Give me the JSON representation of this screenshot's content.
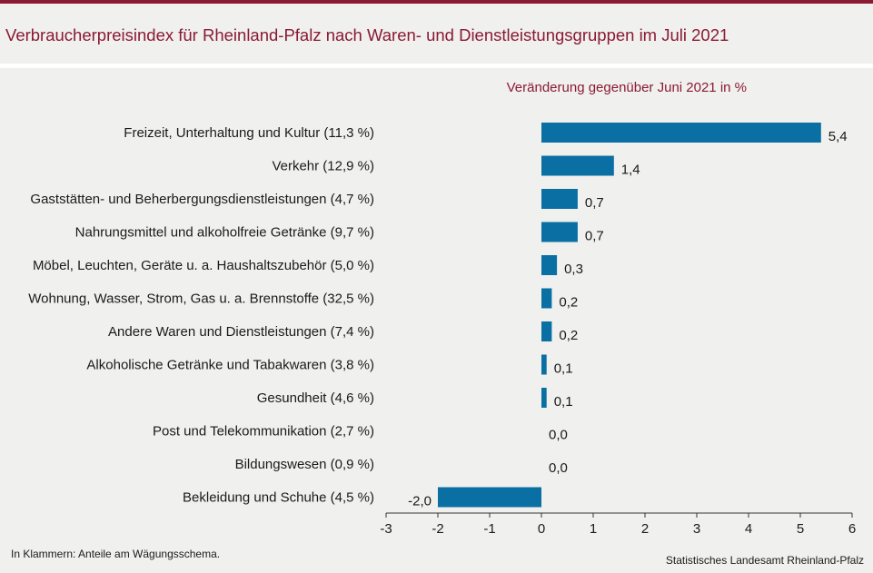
{
  "page": {
    "title": "Verbraucherpreisindex für Rheinland-Pfalz nach Waren- und Dienstleistungsgruppen im Juli 2021",
    "footnote": "In Klammern: Anteile am Wägungsschema.",
    "source": "Statistisches Landesamt Rheinland-Pfalz"
  },
  "chart_data": {
    "type": "bar",
    "orientation": "horizontal",
    "title": "Verbraucherpreisindex für Rheinland-Pfalz nach Waren- und Dienstleistungsgruppen im Juli 2021",
    "subtitle": "Veränderung gegenüber Juni 2021 in %",
    "categories": [
      "Freizeit, Unterhaltung und Kultur (11,3 %)",
      "Verkehr (12,9 %)",
      "Gaststätten- und Beherbergungsdienstleistungen (4,7 %)",
      "Nahrungsmittel und alkoholfreie Getränke (9,7 %)",
      "Möbel, Leuchten, Geräte u. a. Haushaltszubehör (5,0 %)",
      "Wohnung, Wasser, Strom, Gas u. a. Brennstoffe (32,5 %)",
      "Andere Waren und Dienstleistungen (7,4 %)",
      "Alkoholische Getränke und Tabakwaren (3,8 %)",
      "Gesundheit (4,6 %)",
      "Post und Telekommunikation (2,7 %)",
      "Bildungswesen (0,9 %)",
      "Bekleidung und Schuhe (4,5 %)"
    ],
    "values": [
      5.4,
      1.4,
      0.7,
      0.7,
      0.3,
      0.2,
      0.2,
      0.1,
      0.1,
      0.0,
      0.0,
      -2.0
    ],
    "value_labels": [
      "5,4",
      "1,4",
      "0,7",
      "0,7",
      "0,3",
      "0,2",
      "0,2",
      "0,1",
      "0,1",
      "0,0",
      "0,0",
      "-2,0"
    ],
    "xlim": [
      -3,
      6
    ],
    "xticks": [
      -3,
      -2,
      -1,
      0,
      1,
      2,
      3,
      4,
      5,
      6
    ],
    "xtick_labels": [
      "-3",
      "-2",
      "-1",
      "0",
      "1",
      "2",
      "3",
      "4",
      "5",
      "6"
    ],
    "grid": false,
    "legend": "none",
    "colors": {
      "bar": "#0a6fa3",
      "title": "#8b1a33",
      "subtitle": "#8b1a33"
    }
  }
}
